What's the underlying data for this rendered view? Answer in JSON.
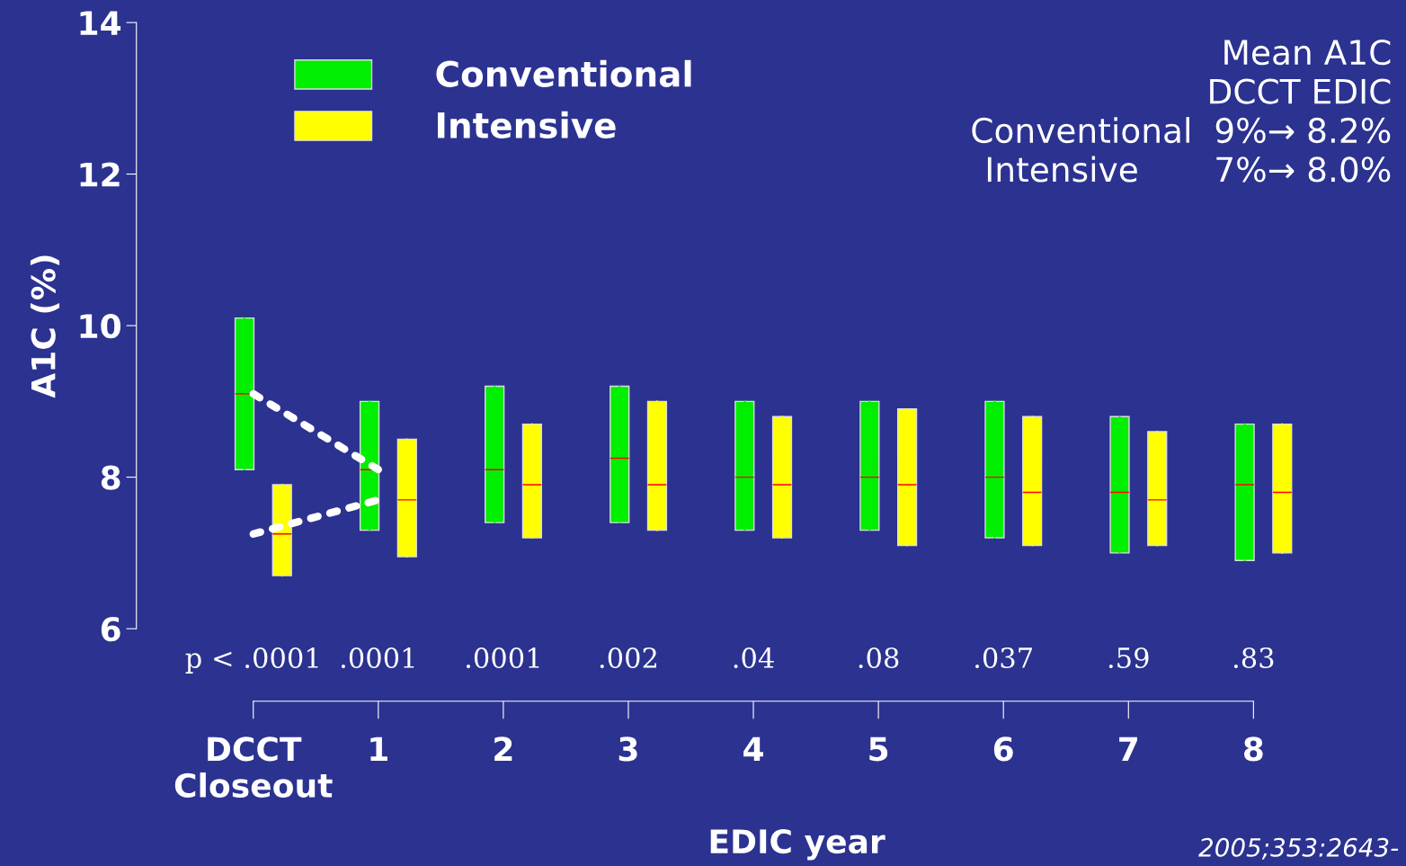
{
  "chart_data": {
    "type": "box",
    "ylabel": "A1C (%)",
    "xlabel": "EDIC year",
    "categories": [
      "DCCT\nCloseout",
      "1",
      "2",
      "3",
      "4",
      "5",
      "6",
      "7",
      "8"
    ],
    "ylim": [
      6,
      14
    ],
    "yticks": [
      6,
      8,
      10,
      12,
      14
    ],
    "grid": false,
    "legend": "top left",
    "series": [
      {
        "name": "Conventional",
        "color": "#00ee00",
        "boxes": [
          {
            "low": 8.1,
            "q1": 8.1,
            "median": 9.1,
            "q3": 10.1,
            "high": 10.1
          },
          {
            "low": 7.3,
            "q1": 7.3,
            "median": 8.1,
            "q3": 9.0,
            "high": 9.0
          },
          {
            "low": 7.4,
            "q1": 7.4,
            "median": 8.1,
            "q3": 9.2,
            "high": 9.2
          },
          {
            "low": 7.4,
            "q1": 7.4,
            "median": 8.25,
            "q3": 9.2,
            "high": 9.2
          },
          {
            "low": 7.3,
            "q1": 7.3,
            "median": 8.0,
            "q3": 9.0,
            "high": 9.0
          },
          {
            "low": 7.3,
            "q1": 7.3,
            "median": 8.0,
            "q3": 9.0,
            "high": 9.0
          },
          {
            "low": 7.2,
            "q1": 7.2,
            "median": 8.0,
            "q3": 9.0,
            "high": 9.0
          },
          {
            "low": 7.0,
            "q1": 7.0,
            "median": 7.8,
            "q3": 8.8,
            "high": 8.8
          },
          {
            "low": 6.9,
            "q1": 6.9,
            "median": 7.9,
            "q3": 8.7,
            "high": 8.7
          }
        ]
      },
      {
        "name": "Intensive",
        "color": "#ffff00",
        "boxes": [
          {
            "low": 6.7,
            "q1": 6.7,
            "median": 7.25,
            "q3": 7.9,
            "high": 7.9
          },
          {
            "low": 6.95,
            "q1": 6.95,
            "median": 7.7,
            "q3": 8.5,
            "high": 8.5
          },
          {
            "low": 7.2,
            "q1": 7.2,
            "median": 7.9,
            "q3": 8.7,
            "high": 8.7
          },
          {
            "low": 7.3,
            "q1": 7.3,
            "median": 7.9,
            "q3": 9.0,
            "high": 9.0
          },
          {
            "low": 7.2,
            "q1": 7.2,
            "median": 7.9,
            "q3": 8.8,
            "high": 8.8
          },
          {
            "low": 7.1,
            "q1": 7.1,
            "median": 7.9,
            "q3": 8.9,
            "high": 8.9
          },
          {
            "low": 7.1,
            "q1": 7.1,
            "median": 7.8,
            "q3": 8.8,
            "high": 8.8
          },
          {
            "low": 7.1,
            "q1": 7.1,
            "median": 7.7,
            "q3": 8.6,
            "high": 8.6
          },
          {
            "low": 7.0,
            "q1": 7.0,
            "median": 7.8,
            "q3": 8.7,
            "high": 8.7
          }
        ]
      },
      {
        "type": "line",
        "color": "#ffffff",
        "line_style": "dotted",
        "marker": "none",
        "values": [
          9.1,
          8.1,
          null,
          null,
          null,
          null,
          null,
          null,
          null
        ]
      },
      {
        "type": "line",
        "color": "#ffffff",
        "line_style": "dotted",
        "marker": "none",
        "values": [
          7.25,
          7.7,
          null,
          null,
          null,
          null,
          null,
          null,
          null
        ]
      }
    ],
    "annotations": [
      "p < .0001",
      ".0001",
      ".0001",
      ".002",
      ".04",
      ".08",
      ".037",
      ".59",
      ".83",
      "Mean A1C\nDCCT EDIC\nConventional  9%→ 8.2%\nIntensive       7%→ 8.0%",
      "2005;353:2643-"
    ]
  }
}
